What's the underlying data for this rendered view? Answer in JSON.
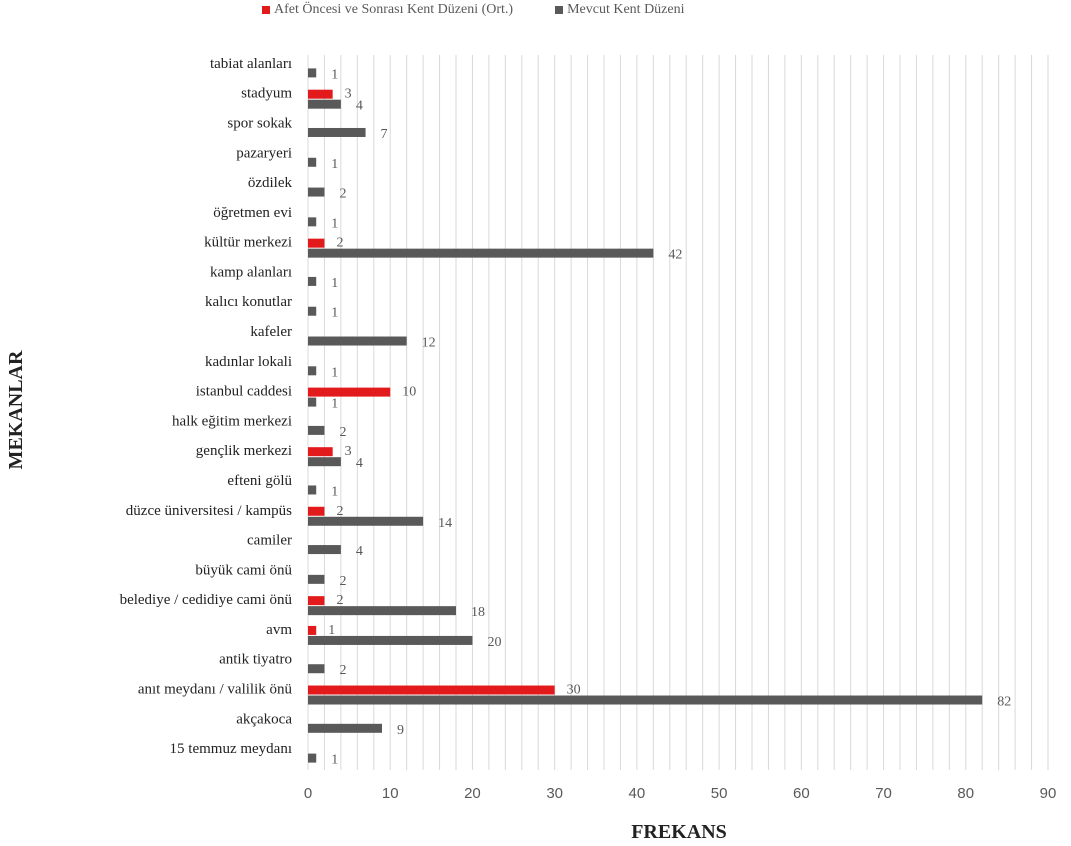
{
  "chart_data": {
    "type": "bar",
    "orientation": "horizontal",
    "xlabel": "FREKANS",
    "ylabel": "MEKANLAR",
    "xlim": [
      0,
      90
    ],
    "x_ticks": [
      0,
      10,
      20,
      30,
      40,
      50,
      60,
      70,
      80,
      90
    ],
    "minor_grid_step": 2,
    "grid": true,
    "legend_position": "top",
    "categories": [
      "tabiat alanları",
      "stadyum",
      "spor sokak",
      "pazaryeri",
      "özdilek",
      "öğretmen evi",
      "kültür merkezi",
      "kamp alanları",
      "kalıcı konutlar",
      "kafeler",
      "kadınlar lokali",
      "istanbul caddesi",
      "halk eğitim merkezi",
      "gençlik merkezi",
      "efteni gölü",
      "düzce üniversitesi / kampüs",
      "camiler",
      "büyük cami önü",
      "belediye /  cedidiye cami önü",
      "avm",
      "antik tiyatro",
      "anıt meydanı / valilik önü",
      "akçakoca",
      "15 temmuz meydanı"
    ],
    "series": [
      {
        "name": "Afet Öncesi ve Sonrası Kent Düzeni (Ort.)",
        "color": "#e31a1c",
        "values": [
          null,
          3,
          null,
          null,
          null,
          null,
          2,
          null,
          null,
          null,
          null,
          10,
          null,
          3,
          null,
          2,
          null,
          null,
          2,
          1,
          null,
          30,
          null,
          null
        ]
      },
      {
        "name": "Mevcut Kent Düzeni",
        "color": "#595959",
        "values": [
          1,
          4,
          7,
          1,
          2,
          1,
          42,
          1,
          1,
          12,
          1,
          1,
          2,
          4,
          1,
          14,
          4,
          2,
          18,
          20,
          2,
          82,
          9,
          1
        ]
      }
    ]
  }
}
